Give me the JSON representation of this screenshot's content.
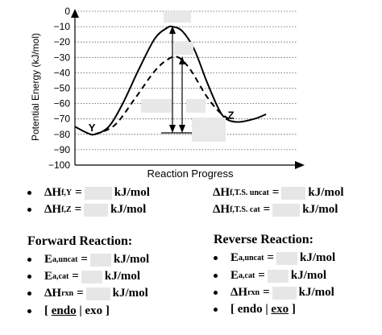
{
  "chart_data": {
    "type": "line",
    "ylabel": "Potential Energy (kJ/mol)",
    "xlabel": "Reaction Progress",
    "ylim": [
      -100,
      0
    ],
    "yticks": [
      0,
      -10,
      -20,
      -30,
      -40,
      -50,
      -60,
      -70,
      -80,
      -90,
      -100
    ],
    "grid": "horizontal-dotted",
    "series": [
      {
        "style": "solid",
        "values": [
          [
            0.0,
            -75
          ],
          [
            0.06,
            -79
          ],
          [
            0.1,
            -80
          ],
          [
            0.17,
            -75
          ],
          [
            0.24,
            -60
          ],
          [
            0.32,
            -38
          ],
          [
            0.4,
            -18
          ],
          [
            0.46,
            -11
          ],
          [
            0.49,
            -10
          ],
          [
            0.54,
            -13
          ],
          [
            0.6,
            -25
          ],
          [
            0.66,
            -45
          ],
          [
            0.72,
            -63
          ],
          [
            0.76,
            -70
          ],
          [
            0.82,
            -72
          ],
          [
            0.9,
            -70
          ],
          [
            0.96,
            -67
          ]
        ]
      },
      {
        "style": "dashed",
        "values": [
          [
            0.1,
            -80
          ],
          [
            0.2,
            -74
          ],
          [
            0.3,
            -57
          ],
          [
            0.4,
            -39
          ],
          [
            0.47,
            -31
          ],
          [
            0.52,
            -30
          ],
          [
            0.58,
            -38
          ],
          [
            0.66,
            -55
          ],
          [
            0.73,
            -66
          ],
          [
            0.8,
            -72
          ]
        ]
      }
    ],
    "point_labels": [
      {
        "text": "Y",
        "x": 0.1,
        "y": -80
      },
      {
        "text": "Z",
        "x": 0.8,
        "y": -72
      }
    ]
  },
  "questions": {
    "dHfY_label": "ΔH",
    "dHfY_sub": "f,Y",
    "dHfZ_label": "ΔH",
    "dHfZ_sub": "f,Z",
    "dHfTSuncat_label": "ΔH",
    "dHfTSuncat_sub": "f,T.S. uncat",
    "dHfTScat_label": "ΔH",
    "dHfTScat_sub": "f,T.S. cat",
    "equals": "=",
    "unit": "kJ/mol",
    "forward_heading": "Forward Reaction:",
    "reverse_heading": "Reverse Reaction:",
    "ea_uncat_label": "E",
    "ea_uncat_sub": "a,uncat",
    "ea_cat_label": "E",
    "ea_cat_sub": "a,cat",
    "dHrxn_label": "ΔH",
    "dHrxn_sub": "rxn",
    "open_bracket": "[",
    "close_bracket": "]",
    "endo": "endo",
    "separator": "|",
    "exo": "exo"
  }
}
